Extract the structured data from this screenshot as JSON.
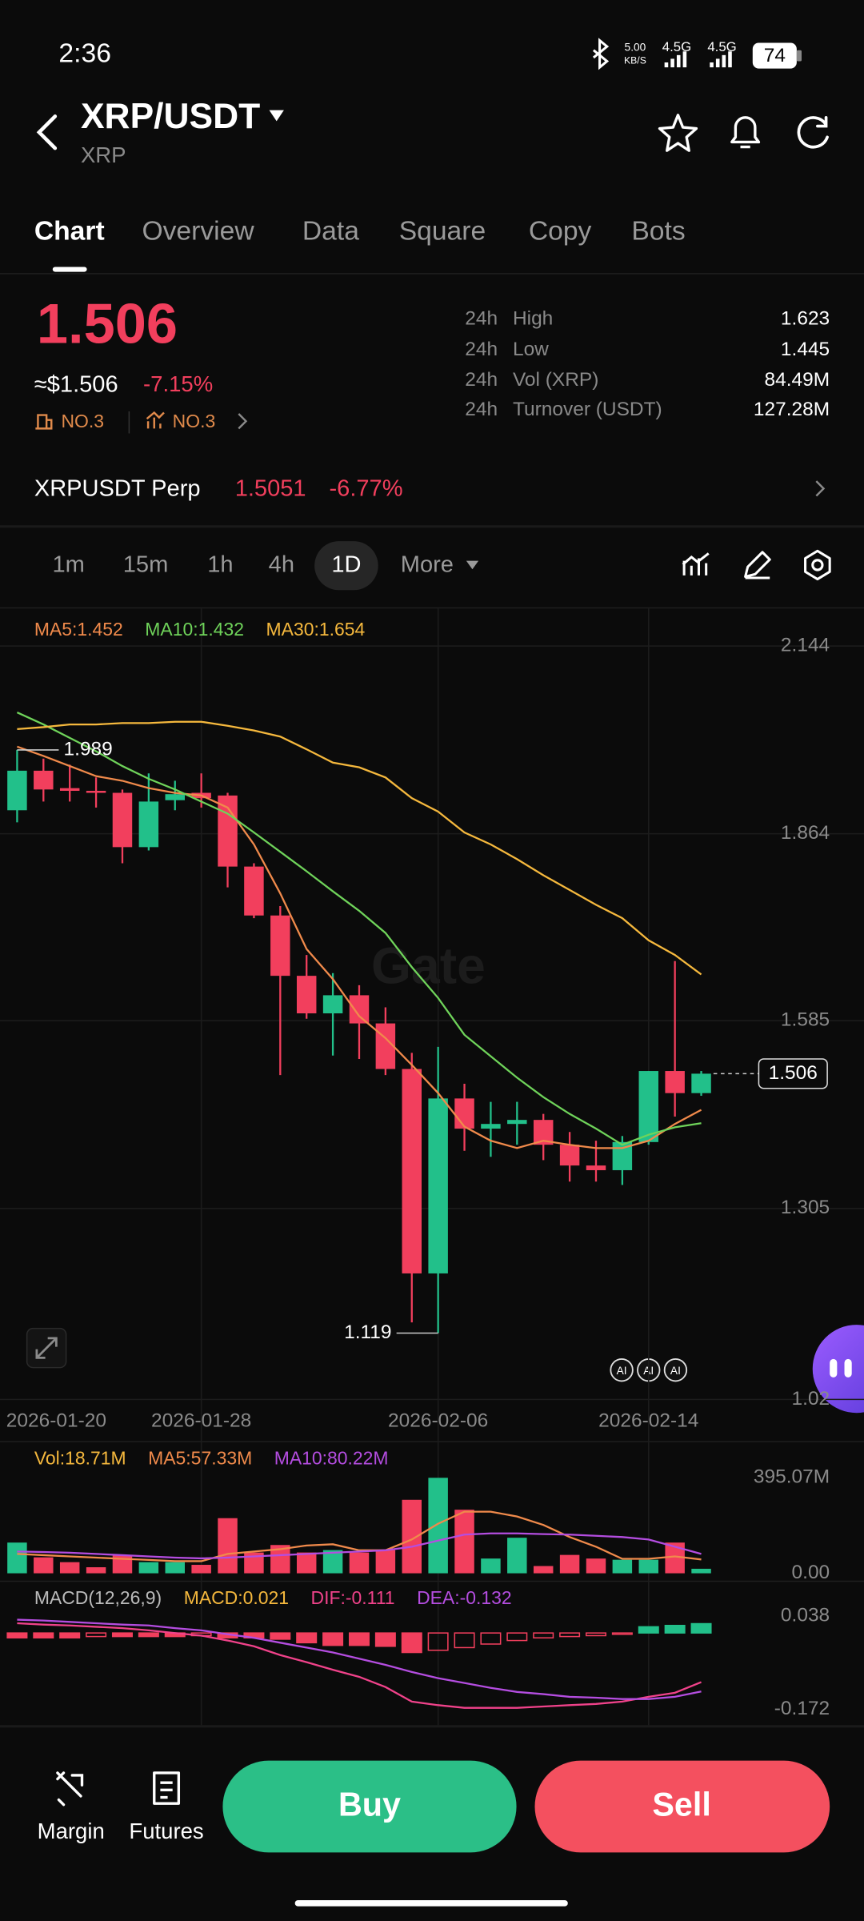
{
  "status_bar": {
    "time": "2:36",
    "net_speed": "5.00",
    "net_unit": "KB/S",
    "signal1": "4.5G",
    "signal2": "4.5G",
    "battery": "74"
  },
  "header": {
    "pair": "XRP/USDT",
    "base": "XRP"
  },
  "tabs": [
    "Chart",
    "Overview",
    "Data",
    "Square",
    "Copy",
    "Bots"
  ],
  "ticker": {
    "price": "1.506",
    "usd_price": "≈$1.506",
    "change": "-7.15%",
    "rank1": "NO.3",
    "rank2": "NO.3",
    "stats": [
      {
        "period": "24h",
        "label": "High",
        "value": "1.623"
      },
      {
        "period": "24h",
        "label": "Low",
        "value": "1.445"
      },
      {
        "period": "24h",
        "label": "Vol (XRP)",
        "value": "84.49M"
      },
      {
        "period": "24h",
        "label": "Turnover (USDT)",
        "value": "127.28M"
      }
    ]
  },
  "perp": {
    "name": "XRPUSDT Perp",
    "price": "1.5051",
    "change": "-6.77%"
  },
  "timeframes": [
    "1m",
    "15m",
    "1h",
    "4h",
    "1D",
    "More"
  ],
  "watermark": "Gate",
  "ai_badges": [
    "AI",
    "AI",
    "AI"
  ],
  "footer": {
    "margin": "Margin",
    "futures": "Futures",
    "buy": "Buy",
    "sell": "Sell"
  },
  "chart_data": [
    {
      "type": "candlestick",
      "categories": [
        null,
        "2026-01-20",
        null,
        null,
        null,
        null,
        null,
        "2026-01-28",
        null,
        null,
        null,
        null,
        null,
        null,
        null,
        null,
        "2026-02-06",
        null,
        null,
        null,
        null,
        null,
        null,
        null,
        "2026-02-14",
        null,
        null
      ],
      "open": [
        1.899,
        1.958,
        1.932,
        1.928,
        1.925,
        1.844,
        1.914,
        1.925,
        1.921,
        1.815,
        1.742,
        1.652,
        1.596,
        1.623,
        1.581,
        1.513,
        1.208,
        1.469,
        1.424,
        1.431,
        1.437,
        1.4,
        1.369,
        1.362,
        1.404,
        1.51,
        1.477
      ],
      "high": [
        1.989,
        1.976,
        1.967,
        1.948,
        1.93,
        1.954,
        1.943,
        1.954,
        1.925,
        1.82,
        1.756,
        1.683,
        1.656,
        1.638,
        1.605,
        1.537,
        1.546,
        1.491,
        1.464,
        1.464,
        1.446,
        1.419,
        1.406,
        1.413,
        1.51,
        1.674,
        1.51
      ],
      "low": [
        1.881,
        1.912,
        1.912,
        1.903,
        1.82,
        1.839,
        1.899,
        1.903,
        1.784,
        1.738,
        1.504,
        1.588,
        1.533,
        1.528,
        1.504,
        1.135,
        1.119,
        1.391,
        1.382,
        1.4,
        1.377,
        1.345,
        1.345,
        1.34,
        1.4,
        1.442,
        1.473
      ],
      "close": [
        1.958,
        1.93,
        1.928,
        1.925,
        1.844,
        1.912,
        1.923,
        1.917,
        1.815,
        1.742,
        1.652,
        1.596,
        1.623,
        1.581,
        1.513,
        1.208,
        1.469,
        1.424,
        1.431,
        1.437,
        1.4,
        1.369,
        1.362,
        1.404,
        1.51,
        1.477,
        1.506
      ],
      "up_color": "#22c08a",
      "down_color": "#f23f5d",
      "series": [
        {
          "name": "MA5:1.452",
          "color": "#f08a4b",
          "values": [
            1.994,
            1.98,
            1.965,
            1.95,
            1.943,
            1.932,
            1.925,
            1.921,
            1.903,
            1.848,
            1.775,
            1.692,
            1.647,
            1.592,
            1.559,
            1.519,
            1.477,
            1.427,
            1.406,
            1.395,
            1.406,
            1.4,
            1.395,
            1.395,
            1.406,
            1.431,
            1.452
          ]
        },
        {
          "name": "MA10:1.432",
          "color": "#6fd35a",
          "values": [
            2.045,
            2.027,
            2.007,
            1.987,
            1.965,
            1.946,
            1.93,
            1.912,
            1.894,
            1.866,
            1.837,
            1.808,
            1.778,
            1.749,
            1.716,
            1.665,
            1.619,
            1.564,
            1.532,
            1.5,
            1.471,
            1.446,
            1.424,
            1.4,
            1.415,
            1.426,
            1.432
          ]
        },
        {
          "name": "MA30:1.654",
          "color": "#f5b83d",
          "values": [
            2.02,
            2.023,
            2.027,
            2.027,
            2.029,
            2.029,
            2.031,
            2.031,
            2.025,
            2.018,
            2.009,
            1.99,
            1.97,
            1.963,
            1.948,
            1.917,
            1.897,
            1.866,
            1.848,
            1.826,
            1.802,
            1.78,
            1.758,
            1.738,
            1.705,
            1.683,
            1.654
          ]
        }
      ],
      "current_price": 1.506,
      "ylim": [
        1.02,
        2.2
      ],
      "yticks": [
        2.144,
        1.864,
        1.585,
        1.305,
        1.02
      ],
      "grid": true
    },
    {
      "type": "bar",
      "up_color": "#22c08a",
      "down_color": "#f23f5d",
      "series": [
        {
          "name": "Vol:18.71M",
          "color": "#f5b83d",
          "values": [
            127,
            66,
            46,
            25,
            76,
            46,
            46,
            35,
            228,
            86,
            117,
            86,
            96,
            86,
            96,
            304,
            395,
            263,
            61,
            147,
            30,
            76,
            61,
            56,
            56,
            127,
            18.71
          ]
        },
        {
          "name": "MA5:57.33M",
          "color": "#f08a4b",
          "values": [
            80,
            75,
            70,
            65,
            60,
            55,
            50,
            50,
            80,
            90,
            100,
            115,
            120,
            95,
            95,
            140,
            205,
            255,
            255,
            235,
            200,
            150,
            110,
            60,
            60,
            70,
            57.33
          ]
        },
        {
          "name": "MA10:80.22M",
          "color": "#b44de0",
          "values": [
            90,
            88,
            85,
            80,
            75,
            70,
            65,
            62,
            65,
            70,
            75,
            80,
            85,
            90,
            95,
            110,
            135,
            160,
            165,
            165,
            162,
            160,
            155,
            150,
            140,
            110,
            80.22
          ]
        }
      ],
      "ylim": [
        0,
        395.07
      ],
      "yticks": [
        {
          "value": 395.07,
          "label": "395.07M"
        },
        {
          "value": 0,
          "label": "0.00"
        }
      ],
      "grid": false
    },
    {
      "type": "macd",
      "title": "MACD(12,26,9)",
      "up_color": "#22c08a",
      "down_color": "#f23f5d",
      "series": [
        {
          "name": "MACD:0.021",
          "color": "#f5b83d",
          "values": [
            -0.011,
            -0.011,
            -0.011,
            -0.008,
            -0.008,
            -0.008,
            -0.008,
            -0.006,
            -0.011,
            -0.011,
            -0.014,
            -0.022,
            -0.028,
            -0.028,
            -0.03,
            -0.044,
            -0.039,
            -0.033,
            -0.025,
            -0.017,
            -0.011,
            -0.008,
            -0.006,
            -0.003,
            0.014,
            0.017,
            0.021
          ]
        },
        {
          "name": "DIF:-0.111",
          "color": "#f0428a",
          "values": [
            0.022,
            0.019,
            0.017,
            0.014,
            0.011,
            0.006,
            0,
            -0.006,
            -0.017,
            -0.03,
            -0.05,
            -0.066,
            -0.083,
            -0.099,
            -0.122,
            -0.155,
            -0.163,
            -0.169,
            -0.169,
            -0.169,
            -0.166,
            -0.163,
            -0.16,
            -0.155,
            -0.144,
            -0.135,
            -0.111
          ]
        },
        {
          "name": "DEA:-0.132",
          "color": "#b44de0",
          "values": [
            0.03,
            0.028,
            0.025,
            0.022,
            0.019,
            0.017,
            0.011,
            0.006,
            -0.003,
            -0.011,
            -0.022,
            -0.033,
            -0.044,
            -0.058,
            -0.072,
            -0.088,
            -0.102,
            -0.113,
            -0.124,
            -0.133,
            -0.138,
            -0.144,
            -0.146,
            -0.149,
            -0.149,
            -0.144,
            -0.132
          ]
        }
      ],
      "ylim": [
        -0.172,
        0.038
      ],
      "yticks": [
        0.038,
        -0.172
      ],
      "grid": false
    }
  ]
}
